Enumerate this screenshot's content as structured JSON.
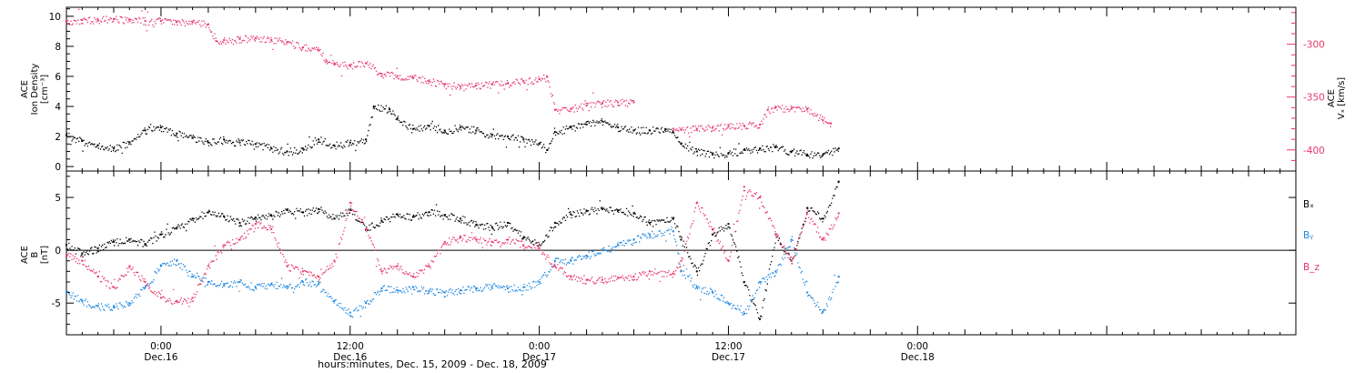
{
  "colors": {
    "black": "#000000",
    "red": "#e8366b",
    "blue": "#1e87e0"
  },
  "xaxis": {
    "title": "hours:minutes, Dec. 15, 2009 - Dec. 18, 2009",
    "range_hours": [
      -6,
      72
    ],
    "ticks": [
      {
        "t": 0,
        "time": "0:00",
        "date": "Dec.16"
      },
      {
        "t": 12,
        "time": "12:00",
        "date": "Dec.16"
      },
      {
        "t": 24,
        "time": "0:00",
        "date": "Dec.17"
      },
      {
        "t": 36,
        "time": "12:00",
        "date": "Dec.17"
      },
      {
        "t": 48,
        "time": "0:00",
        "date": "Dec.18"
      }
    ]
  },
  "chart_data": [
    {
      "type": "scatter",
      "panel": "top",
      "ylabel_left": [
        "ACE",
        "Ion Density",
        "[cm⁻³]"
      ],
      "ylabel_right": [
        "ACE",
        "Vₓ [km/s]"
      ],
      "ylim_left": [
        -0.3,
        10.6
      ],
      "ylim_right": [
        -420,
        -265
      ],
      "yticks_left": [
        0,
        2,
        4,
        6,
        8,
        10
      ],
      "yticks_right": [
        -300,
        -350,
        -400
      ],
      "series": [
        {
          "color": "black",
          "axis": "left",
          "points": [
            [
              -6,
              2.1
            ],
            [
              -5,
              1.7
            ],
            [
              -4,
              1.4
            ],
            [
              -3,
              1.2
            ],
            [
              -2,
              1.6
            ],
            [
              -1,
              2.4
            ],
            [
              0,
              2.6
            ],
            [
              1,
              2.2
            ],
            [
              2,
              1.9
            ],
            [
              3,
              1.6
            ],
            [
              4,
              1.8
            ],
            [
              5,
              1.6
            ],
            [
              6,
              1.5
            ],
            [
              7,
              1.2
            ],
            [
              8,
              1.0
            ],
            [
              9,
              1.2
            ],
            [
              10,
              1.8
            ],
            [
              11,
              1.4
            ],
            [
              12,
              1.6
            ],
            [
              13,
              1.8
            ],
            [
              13.5,
              4.0
            ],
            [
              14.5,
              3.8
            ],
            [
              15,
              3.2
            ],
            [
              16,
              2.5
            ],
            [
              17,
              2.7
            ],
            [
              18,
              2.4
            ],
            [
              19,
              2.6
            ],
            [
              20,
              2.4
            ],
            [
              21,
              2.1
            ],
            [
              22,
              2.0
            ],
            [
              23,
              1.8
            ],
            [
              24,
              1.5
            ],
            [
              24.5,
              1.1
            ],
            [
              25,
              2.3
            ],
            [
              26,
              2.6
            ],
            [
              27,
              2.8
            ],
            [
              28,
              3.0
            ],
            [
              29,
              2.6
            ],
            [
              30,
              2.4
            ],
            [
              31,
              2.4
            ],
            [
              32,
              2.5
            ],
            [
              32.5,
              2.3
            ],
            [
              33,
              1.5
            ],
            [
              34,
              1.0
            ],
            [
              35,
              0.8
            ],
            [
              36,
              0.9
            ],
            [
              37,
              1.1
            ],
            [
              38,
              1.2
            ],
            [
              39,
              1.3
            ],
            [
              40,
              1.0
            ],
            [
              41,
              0.8
            ],
            [
              42,
              0.8
            ],
            [
              43,
              1.2
            ]
          ]
        },
        {
          "color": "red",
          "axis": "right",
          "points": [
            [
              -6,
              -278
            ],
            [
              -5,
              -277
            ],
            [
              -4,
              -277
            ],
            [
              -3,
              -276
            ],
            [
              -2,
              -277
            ],
            [
              -1,
              -278
            ],
            [
              0,
              -278
            ],
            [
              1,
              -279
            ],
            [
              2,
              -279
            ],
            [
              3,
              -281
            ],
            [
              3.5,
              -297
            ],
            [
              4,
              -296
            ],
            [
              5,
              -295
            ],
            [
              6,
              -294
            ],
            [
              7,
              -296
            ],
            [
              8,
              -298
            ],
            [
              9,
              -303
            ],
            [
              10,
              -306
            ],
            [
              10.5,
              -316
            ],
            [
              11,
              -318
            ],
            [
              12,
              -320
            ],
            [
              13,
              -318
            ],
            [
              14,
              -328
            ],
            [
              15,
              -330
            ],
            [
              16,
              -332
            ],
            [
              17,
              -335
            ],
            [
              18,
              -338
            ],
            [
              19,
              -340
            ],
            [
              20,
              -339
            ],
            [
              21,
              -338
            ],
            [
              22,
              -337
            ],
            [
              23,
              -335
            ],
            [
              24,
              -333
            ],
            [
              24.5,
              -331
            ],
            [
              25,
              -362
            ],
            [
              26,
              -361
            ],
            [
              27,
              -358
            ],
            [
              28,
              -356
            ],
            [
              29,
              -355
            ],
            [
              30,
              -355
            ],
            [
              32.5,
              -380
            ],
            [
              33,
              -381
            ],
            [
              34,
              -380
            ],
            [
              35,
              -379
            ],
            [
              36,
              -378
            ],
            [
              37,
              -377
            ],
            [
              38,
              -376
            ],
            [
              38.5,
              -362
            ],
            [
              39,
              -360
            ],
            [
              40,
              -361
            ],
            [
              41,
              -361
            ],
            [
              42,
              -372
            ],
            [
              42.5,
              -375
            ]
          ]
        }
      ]
    },
    {
      "type": "scatter",
      "panel": "bottom",
      "ylabel_left": [
        "ACE",
        "B",
        "[nT]"
      ],
      "ylim": [
        -8,
        7.5
      ],
      "yticks": [
        -5,
        0,
        5
      ],
      "zero_line": true,
      "legend": [
        {
          "label": "Bₓ",
          "color": "black"
        },
        {
          "label": "Bᵧ",
          "color": "blue"
        },
        {
          "label": "B_z",
          "color": "red"
        }
      ],
      "series": [
        {
          "name": "Bₓ",
          "color": "black",
          "points": [
            [
              -6,
              0.5
            ],
            [
              -5,
              -0.3
            ],
            [
              -4,
              0.2
            ],
            [
              -3,
              0.8
            ],
            [
              -2,
              1.0
            ],
            [
              -1,
              0.6
            ],
            [
              0,
              1.5
            ],
            [
              1,
              2.1
            ],
            [
              2,
              3.0
            ],
            [
              3,
              3.6
            ],
            [
              4,
              3.2
            ],
            [
              5,
              2.6
            ],
            [
              6,
              3.1
            ],
            [
              7,
              3.3
            ],
            [
              8,
              3.8
            ],
            [
              9,
              3.6
            ],
            [
              10,
              3.9
            ],
            [
              11,
              3.0
            ],
            [
              12,
              3.8
            ],
            [
              13,
              2.0
            ],
            [
              14,
              2.8
            ],
            [
              15,
              3.4
            ],
            [
              16,
              3.2
            ],
            [
              17,
              3.6
            ],
            [
              18,
              3.3
            ],
            [
              19,
              3.0
            ],
            [
              20,
              2.4
            ],
            [
              21,
              2.2
            ],
            [
              22,
              2.6
            ],
            [
              23,
              1.2
            ],
            [
              24,
              0.5
            ],
            [
              25,
              2.6
            ],
            [
              26,
              3.4
            ],
            [
              27,
              3.7
            ],
            [
              28,
              3.9
            ],
            [
              29,
              3.8
            ],
            [
              30,
              3.5
            ],
            [
              31,
              2.6
            ],
            [
              32.5,
              3.0
            ],
            [
              33,
              1.0
            ],
            [
              34,
              -2.0
            ],
            [
              35,
              1.5
            ],
            [
              36,
              2.5
            ],
            [
              37,
              -3.0
            ],
            [
              38,
              -6.5
            ],
            [
              39,
              1.5
            ],
            [
              40,
              -1.0
            ],
            [
              41,
              4.0
            ],
            [
              42,
              3.0
            ],
            [
              43,
              6.5
            ]
          ]
        },
        {
          "name": "Bᵧ",
          "color": "blue",
          "points": [
            [
              -6,
              -4.0
            ],
            [
              -5,
              -4.8
            ],
            [
              -4,
              -5.3
            ],
            [
              -3,
              -5.4
            ],
            [
              -2,
              -5.0
            ],
            [
              -1,
              -3.5
            ],
            [
              0,
              -1.5
            ],
            [
              1,
              -1.0
            ],
            [
              2,
              -2.5
            ],
            [
              3,
              -3.0
            ],
            [
              4,
              -3.2
            ],
            [
              5,
              -3.0
            ],
            [
              6,
              -3.5
            ],
            [
              7,
              -3.2
            ],
            [
              8,
              -3.4
            ],
            [
              9,
              -3.0
            ],
            [
              10,
              -3.2
            ],
            [
              11,
              -4.8
            ],
            [
              12,
              -5.9
            ],
            [
              13,
              -5.0
            ],
            [
              14,
              -3.6
            ],
            [
              15,
              -3.8
            ],
            [
              16,
              -3.5
            ],
            [
              17,
              -3.9
            ],
            [
              18,
              -4.0
            ],
            [
              19,
              -3.8
            ],
            [
              20,
              -3.6
            ],
            [
              21,
              -3.4
            ],
            [
              22,
              -3.6
            ],
            [
              23,
              -3.5
            ],
            [
              24,
              -3.0
            ],
            [
              25,
              -1.0
            ],
            [
              26,
              -1.0
            ],
            [
              27,
              -0.5
            ],
            [
              28,
              0.0
            ],
            [
              29,
              0.5
            ],
            [
              30,
              1.0
            ],
            [
              31,
              1.5
            ],
            [
              32.5,
              1.8
            ],
            [
              33,
              -2.0
            ],
            [
              34,
              -3.5
            ],
            [
              35,
              -4.0
            ],
            [
              36,
              -5.0
            ],
            [
              37,
              -6.0
            ],
            [
              38,
              -3.0
            ],
            [
              39,
              -2.0
            ],
            [
              40,
              1.0
            ],
            [
              41,
              -4.0
            ],
            [
              42,
              -5.8
            ],
            [
              43,
              -2.5
            ]
          ]
        },
        {
          "name": "B_z",
          "color": "red",
          "points": [
            [
              -6,
              -0.5
            ],
            [
              -5,
              -1.0
            ],
            [
              -4,
              -2.5
            ],
            [
              -3,
              -3.5
            ],
            [
              -2,
              -1.5
            ],
            [
              -1,
              -3.0
            ],
            [
              0,
              -4.5
            ],
            [
              1,
              -4.8
            ],
            [
              2,
              -4.5
            ],
            [
              3,
              -1.5
            ],
            [
              4,
              0.5
            ],
            [
              5,
              1.0
            ],
            [
              6,
              2.5
            ],
            [
              7,
              2.0
            ],
            [
              8,
              -1.5
            ],
            [
              9,
              -2.0
            ],
            [
              10,
              -2.5
            ],
            [
              11,
              -1.0
            ],
            [
              12,
              4.5
            ],
            [
              13,
              2.0
            ],
            [
              14,
              -2.0
            ],
            [
              15,
              -1.5
            ],
            [
              16,
              -2.5
            ],
            [
              17,
              -1.5
            ],
            [
              18,
              0.8
            ],
            [
              19,
              1.2
            ],
            [
              20,
              1.0
            ],
            [
              21,
              0.8
            ],
            [
              22,
              1.0
            ],
            [
              23,
              0.5
            ],
            [
              24,
              0.2
            ],
            [
              25,
              -1.5
            ],
            [
              26,
              -2.5
            ],
            [
              27,
              -2.8
            ],
            [
              28,
              -2.8
            ],
            [
              29,
              -2.6
            ],
            [
              30,
              -2.5
            ],
            [
              31,
              -2.0
            ],
            [
              32.5,
              -2.2
            ],
            [
              33,
              -1.0
            ],
            [
              34,
              4.5
            ],
            [
              35,
              2.0
            ],
            [
              36,
              -1.0
            ],
            [
              37,
              6.0
            ],
            [
              38,
              5.0
            ],
            [
              39,
              1.5
            ],
            [
              40,
              -1.0
            ],
            [
              41,
              3.5
            ],
            [
              42,
              1.0
            ],
            [
              43,
              3.5
            ]
          ]
        }
      ]
    }
  ]
}
